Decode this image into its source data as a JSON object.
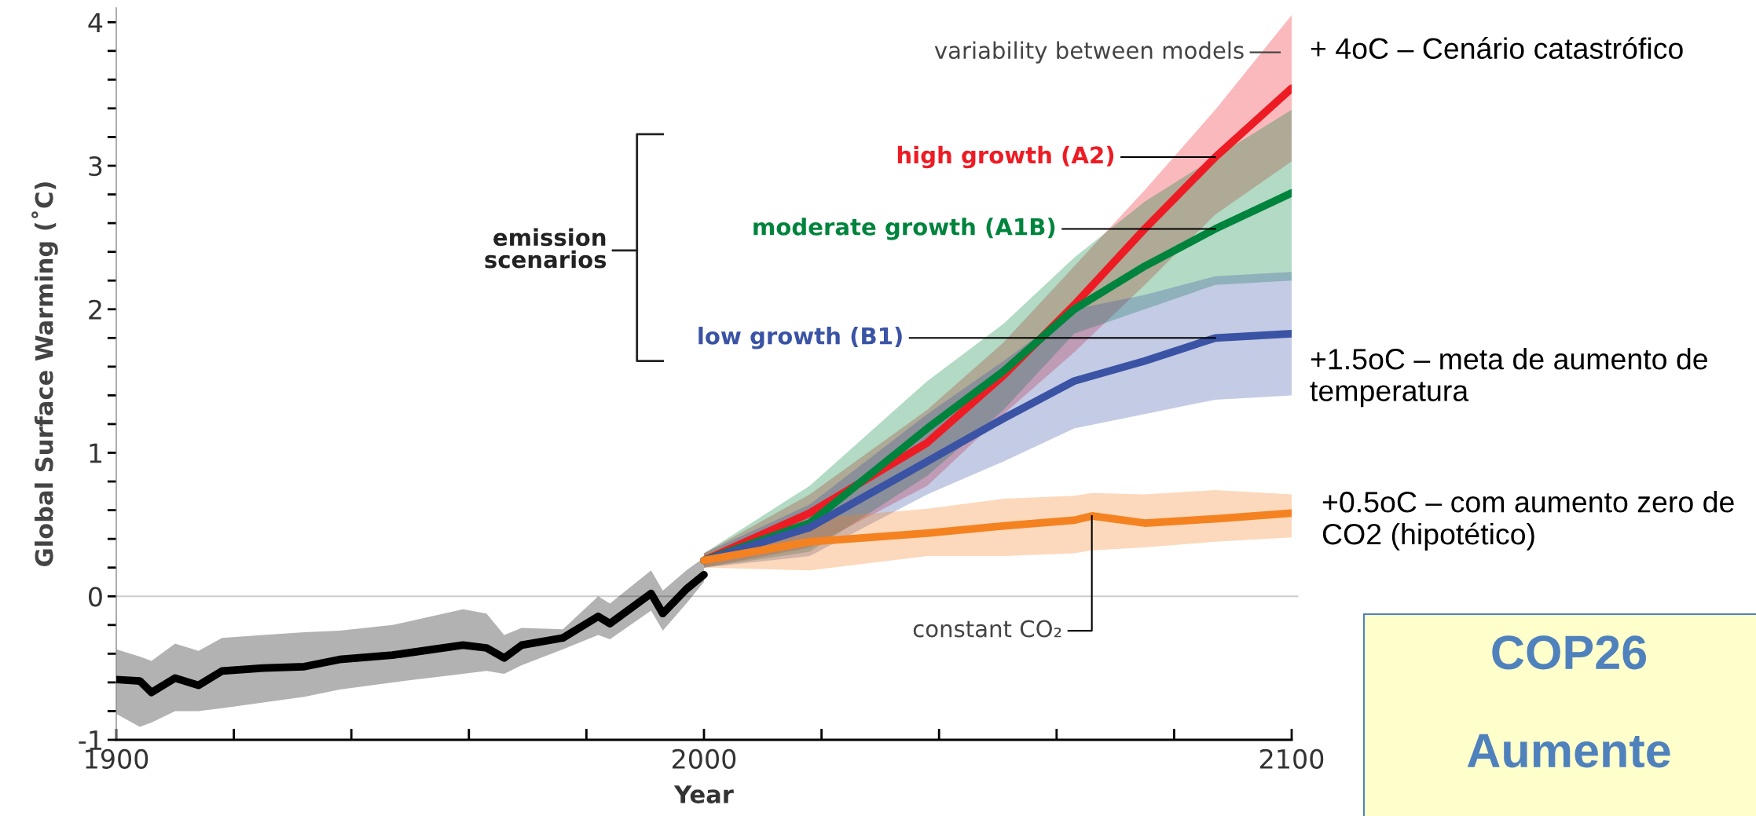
{
  "chart_data": {
    "type": "line",
    "xlabel": "Year",
    "ylabel": "Global Surface Warming (˚C)",
    "xlim": [
      1900,
      2100
    ],
    "xticks": [
      1900,
      {
        "value": 1920,
        "label": null
      },
      {
        "value": 1940,
        "label": null
      },
      {
        "value": 1960,
        "label": null
      },
      {
        "value": 1980,
        "label": null
      },
      2000,
      {
        "value": 2020,
        "label": null
      },
      {
        "value": 2040,
        "label": null
      },
      {
        "value": 2060,
        "label": null
      },
      {
        "value": 2080,
        "label": null
      },
      2100
    ],
    "ylim": [
      -1,
      4.1
    ],
    "yticks": [
      {
        "value": -1,
        "label": "-1"
      },
      {
        "value": -0.8,
        "label": null
      },
      {
        "value": -0.6,
        "label": null
      },
      {
        "value": -0.4,
        "label": null
      },
      {
        "value": -0.2,
        "label": null
      },
      0,
      {
        "value": 0.2,
        "label": null
      },
      {
        "value": 0.4,
        "label": null
      },
      {
        "value": 0.6,
        "label": null
      },
      {
        "value": 0.8,
        "label": null
      },
      1,
      {
        "value": 1.2,
        "label": null
      },
      {
        "value": 1.4,
        "label": null
      },
      {
        "value": 1.6,
        "label": null
      },
      {
        "value": 1.8,
        "label": null
      },
      2,
      {
        "value": 2.2,
        "label": null
      },
      {
        "value": 2.4,
        "label": null
      },
      {
        "value": 2.6,
        "label": null
      },
      {
        "value": 2.8,
        "label": null
      },
      3,
      {
        "value": 3.2,
        "label": null
      },
      {
        "value": 3.4,
        "label": null
      },
      {
        "value": 3.6,
        "label": null
      },
      {
        "value": 3.8,
        "label": null
      },
      4
    ],
    "grid": false,
    "legend": false,
    "marker": "none",
    "line_style": "solid",
    "ref_lines": [
      {
        "axis": "y",
        "value": 0,
        "color": "#cccccc"
      }
    ],
    "series": [
      {
        "color": "#000000",
        "x": [
          1900,
          1904,
          1906,
          1910,
          1914,
          1918,
          1925,
          1932,
          1938,
          1947,
          1959,
          1963,
          1966,
          1969,
          1976,
          1982,
          1984,
          1991,
          1993,
          1997,
          2000
        ],
        "values": [
          -0.58,
          -0.59,
          -0.67,
          -0.57,
          -0.62,
          -0.52,
          -0.5,
          -0.49,
          -0.44,
          -0.41,
          -0.34,
          -0.36,
          -0.43,
          -0.34,
          -0.29,
          -0.14,
          -0.19,
          0.02,
          -0.12,
          0.05,
          0.15
        ],
        "lower": [
          -0.82,
          -0.91,
          -0.88,
          -0.8,
          -0.8,
          -0.78,
          -0.74,
          -0.7,
          -0.65,
          -0.6,
          -0.54,
          -0.52,
          -0.54,
          -0.48,
          -0.37,
          -0.27,
          -0.3,
          -0.1,
          -0.24,
          -0.05,
          0.1
        ],
        "upper": [
          -0.37,
          -0.42,
          -0.45,
          -0.33,
          -0.38,
          -0.29,
          -0.27,
          -0.25,
          -0.24,
          -0.2,
          -0.09,
          -0.12,
          -0.27,
          -0.22,
          -0.23,
          0.0,
          -0.05,
          0.18,
          0.04,
          0.18,
          0.27
        ]
      },
      {
        "name": "high growth (A2)",
        "color": "#ed1c24",
        "x": [
          2000,
          2018,
          2038,
          2051,
          2063,
          2075,
          2087,
          2100
        ],
        "values": [
          0.25,
          0.58,
          1.07,
          1.54,
          2.03,
          2.56,
          3.06,
          3.54
        ],
        "lower": [
          0.2,
          0.34,
          0.77,
          1.27,
          1.7,
          2.17,
          2.66,
          3.03
        ],
        "upper": [
          0.3,
          0.71,
          1.3,
          1.77,
          2.3,
          2.83,
          3.39,
          4.05
        ]
      },
      {
        "name": "moderate growth (A1B)",
        "color": "#00843d",
        "x": [
          2000,
          2018,
          2038,
          2051,
          2063,
          2075,
          2087,
          2100
        ],
        "values": [
          0.25,
          0.51,
          1.17,
          1.57,
          2.0,
          2.3,
          2.56,
          2.81
        ],
        "lower": [
          0.2,
          0.31,
          0.84,
          1.3,
          1.83,
          2.0,
          2.17,
          2.2
        ],
        "upper": [
          0.3,
          0.77,
          1.5,
          1.9,
          2.36,
          2.75,
          3.06,
          3.39
        ]
      },
      {
        "name": "low growth (B1)",
        "color": "#3a53a4",
        "x": [
          2000,
          2018,
          2038,
          2051,
          2063,
          2075,
          2087,
          2100
        ],
        "values": [
          0.25,
          0.48,
          0.94,
          1.24,
          1.5,
          1.64,
          1.8,
          1.83
        ],
        "lower": [
          0.2,
          0.28,
          0.71,
          0.94,
          1.17,
          1.27,
          1.37,
          1.4
        ],
        "upper": [
          0.3,
          0.64,
          1.27,
          1.64,
          2.0,
          2.1,
          2.23,
          2.26
        ]
      },
      {
        "color": "#f58220",
        "x": [
          2000,
          2018,
          2038,
          2051,
          2063,
          2066,
          2075,
          2087,
          2100
        ],
        "values": [
          0.25,
          0.38,
          0.44,
          0.49,
          0.53,
          0.56,
          0.51,
          0.54,
          0.58
        ],
        "lower": [
          0.2,
          0.18,
          0.28,
          0.28,
          0.3,
          0.32,
          0.34,
          0.38,
          0.41
        ],
        "upper": [
          0.3,
          0.54,
          0.61,
          0.68,
          0.7,
          0.72,
          0.71,
          0.74,
          0.71
        ]
      }
    ],
    "annotations": [
      "variability between models",
      "emission\nscenarios",
      {
        "text": "constant CO₂",
        "x": 2066,
        "y": 0.56
      },
      "+ 4oC – Cenário catastrófico",
      "+1.5oC – meta de aumento de temperatura",
      "+0.5oC – com aumento zero de CO2 (hipotético)",
      "COP26",
      "Aumente"
    ]
  }
}
